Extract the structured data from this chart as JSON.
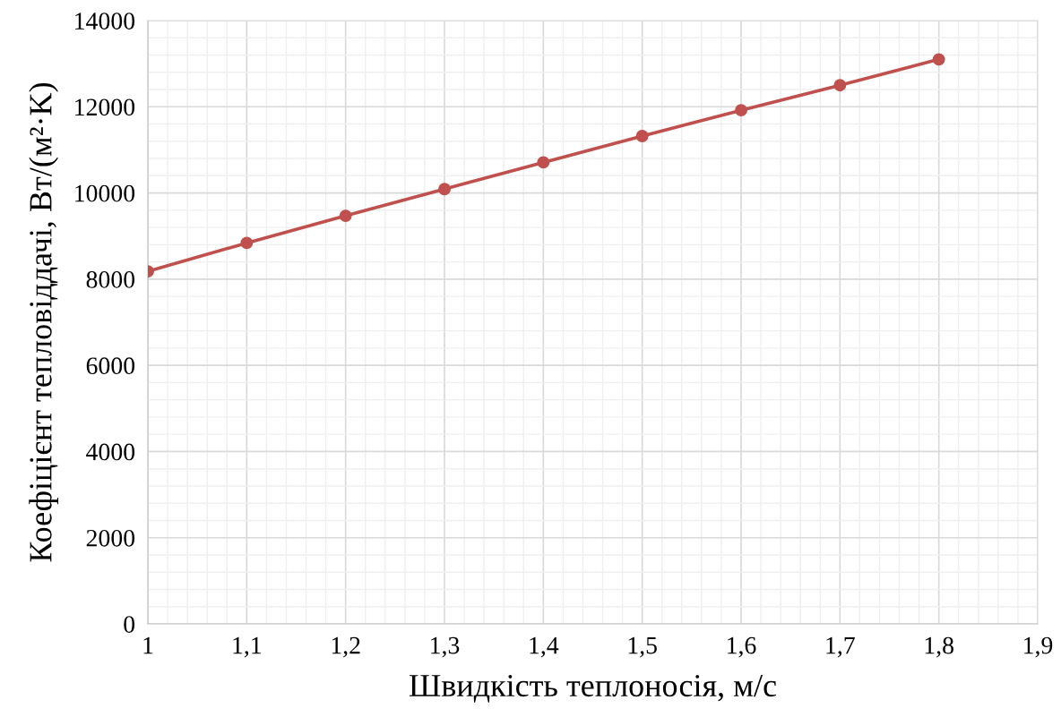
{
  "chart_data": {
    "type": "line",
    "xlabel": "Швидкість теплоносія, м/с",
    "ylabel": "Коефіцієнт тепловіддачі, Вт/(м²·K)",
    "x": [
      1,
      1.1,
      1.2,
      1.3,
      1.4,
      1.5,
      1.6,
      1.7,
      1.8
    ],
    "series": [
      {
        "color": "#c0504d",
        "values": [
          8180,
          8840,
          9470,
          10090,
          10710,
          11320,
          11920,
          12500,
          13100
        ]
      }
    ],
    "xlim": [
      1,
      1.9
    ],
    "xticks": [
      {
        "value": 1,
        "label": "1"
      },
      {
        "value": 1.1,
        "label": "1,1"
      },
      {
        "value": 1.2,
        "label": "1,2"
      },
      {
        "value": 1.3,
        "label": "1,3"
      },
      {
        "value": 1.4,
        "label": "1,4"
      },
      {
        "value": 1.5,
        "label": "1,5"
      },
      {
        "value": 1.6,
        "label": "1,6"
      },
      {
        "value": 1.7,
        "label": "1,7"
      },
      {
        "value": 1.8,
        "label": "1,8"
      },
      {
        "value": 1.9,
        "label": "1,9"
      }
    ],
    "ylim": [
      0,
      14000
    ],
    "yticks": [
      0,
      2000,
      4000,
      6000,
      8000,
      10000,
      12000,
      14000
    ],
    "grid": true,
    "marker": "circle",
    "line_style": "solid",
    "legend": false
  }
}
